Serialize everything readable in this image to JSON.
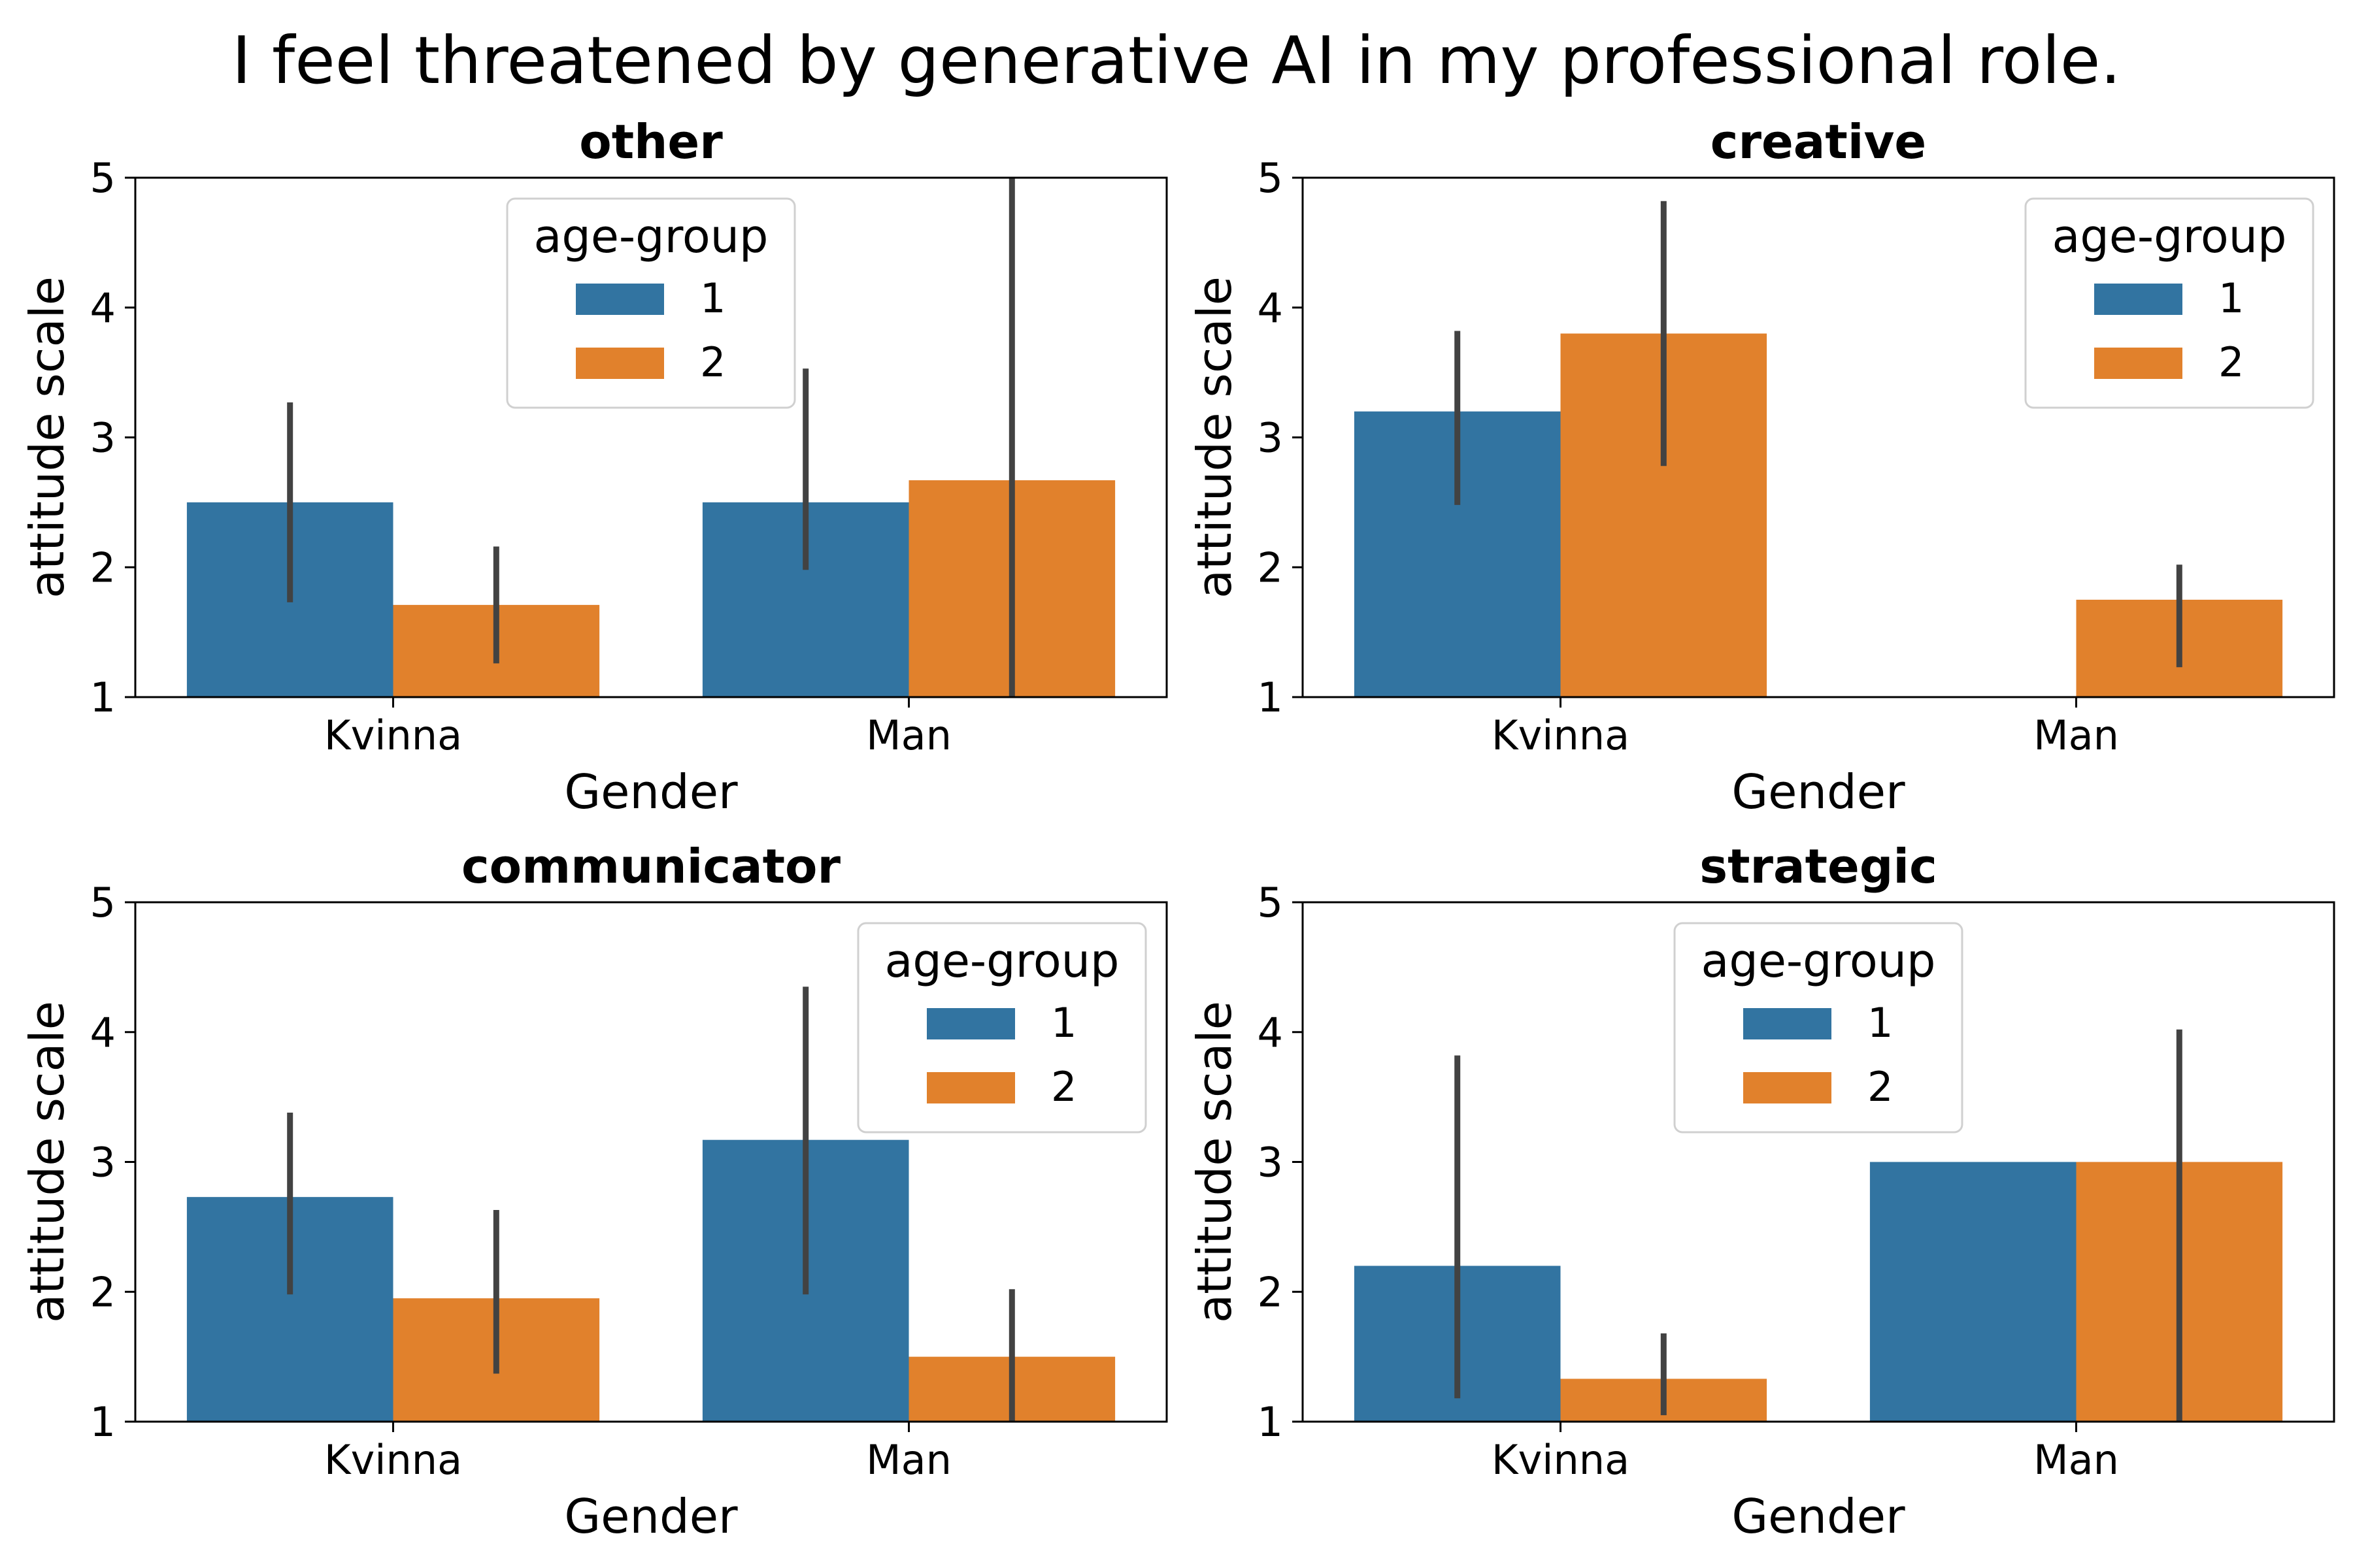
{
  "figure": {
    "title": "I feel threatened by generative AI in my professional role."
  },
  "colors": {
    "group_1": "#3274a1",
    "group_2": "#e1812c",
    "error_bar": "#424242"
  },
  "chart_data": [
    {
      "type": "bar",
      "title": "other",
      "xlabel": "Gender",
      "ylabel": "attitude scale",
      "categories": [
        "Kvinna",
        "Man"
      ],
      "ylim": [
        1,
        5
      ],
      "yticks": [
        1,
        2,
        3,
        4,
        5
      ],
      "legend": {
        "title": "age-group",
        "position": "upper-center"
      },
      "series": [
        {
          "name": "1",
          "values": [
            2.5,
            2.5
          ],
          "ci_low": [
            1.73,
            1.98
          ],
          "ci_high": [
            3.27,
            3.53
          ]
        },
        {
          "name": "2",
          "values": [
            1.71,
            2.67
          ],
          "ci_low": [
            1.26,
            1.0
          ],
          "ci_high": [
            2.16,
            5.0
          ]
        }
      ]
    },
    {
      "type": "bar",
      "title": "creative",
      "xlabel": "Gender",
      "ylabel": "attitude scale",
      "categories": [
        "Kvinna",
        "Man"
      ],
      "ylim": [
        1,
        5
      ],
      "yticks": [
        1,
        2,
        3,
        4,
        5
      ],
      "legend": {
        "title": "age-group",
        "position": "upper-right"
      },
      "series": [
        {
          "name": "1",
          "values": [
            3.2,
            null
          ],
          "ci_low": [
            2.48,
            null
          ],
          "ci_high": [
            3.82,
            null
          ]
        },
        {
          "name": "2",
          "values": [
            3.8,
            1.75
          ],
          "ci_low": [
            2.78,
            1.23
          ],
          "ci_high": [
            4.82,
            2.02
          ]
        }
      ]
    },
    {
      "type": "bar",
      "title": "communicator",
      "xlabel": "Gender",
      "ylabel": "attitude scale",
      "categories": [
        "Kvinna",
        "Man"
      ],
      "ylim": [
        1,
        5
      ],
      "yticks": [
        1,
        2,
        3,
        4,
        5
      ],
      "legend": {
        "title": "age-group",
        "position": "upper-right"
      },
      "series": [
        {
          "name": "1",
          "values": [
            2.73,
            3.17
          ],
          "ci_low": [
            1.98,
            1.98
          ],
          "ci_high": [
            3.38,
            4.35
          ]
        },
        {
          "name": "2",
          "values": [
            1.95,
            1.5
          ],
          "ci_low": [
            1.37,
            1.0
          ],
          "ci_high": [
            2.63,
            2.02
          ]
        }
      ]
    },
    {
      "type": "bar",
      "title": "strategic",
      "xlabel": "Gender",
      "ylabel": "attitude scale",
      "categories": [
        "Kvinna",
        "Man"
      ],
      "ylim": [
        1,
        5
      ],
      "yticks": [
        1,
        2,
        3,
        4,
        5
      ],
      "legend": {
        "title": "age-group",
        "position": "upper-center"
      },
      "series": [
        {
          "name": "1",
          "values": [
            2.2,
            3.0
          ],
          "ci_low": [
            1.18,
            3.0
          ],
          "ci_high": [
            3.82,
            3.0
          ]
        },
        {
          "name": "2",
          "values": [
            1.33,
            3.0
          ],
          "ci_low": [
            1.05,
            1.0
          ],
          "ci_high": [
            1.68,
            4.02
          ]
        }
      ]
    }
  ]
}
